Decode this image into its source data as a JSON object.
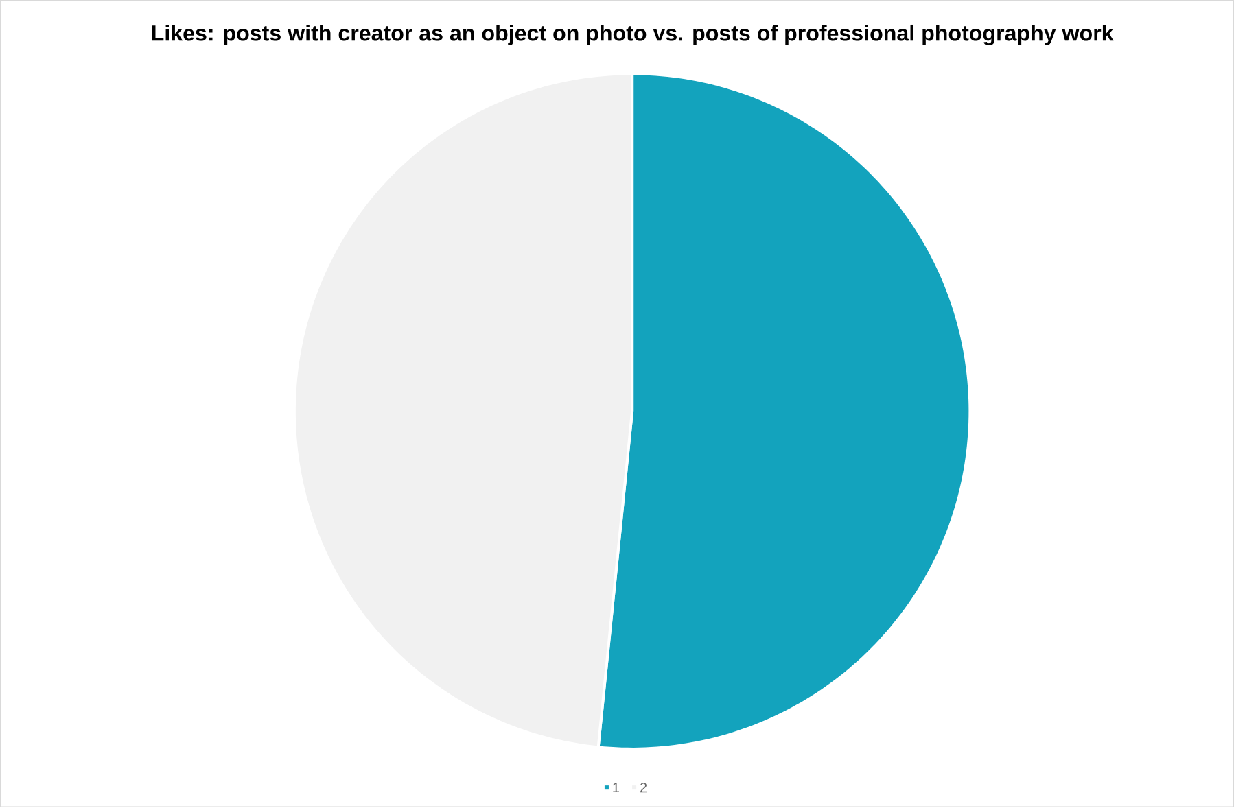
{
  "chart_data": {
    "type": "pie",
    "title": "Likes: posts with creator as an object on photo vs. posts of professional photography work",
    "categories": [
      "1",
      "2"
    ],
    "values": [
      51.6,
      48.4
    ],
    "colors": [
      "#13a3bd",
      "#f1f1f1"
    ],
    "legend": "bottom"
  }
}
